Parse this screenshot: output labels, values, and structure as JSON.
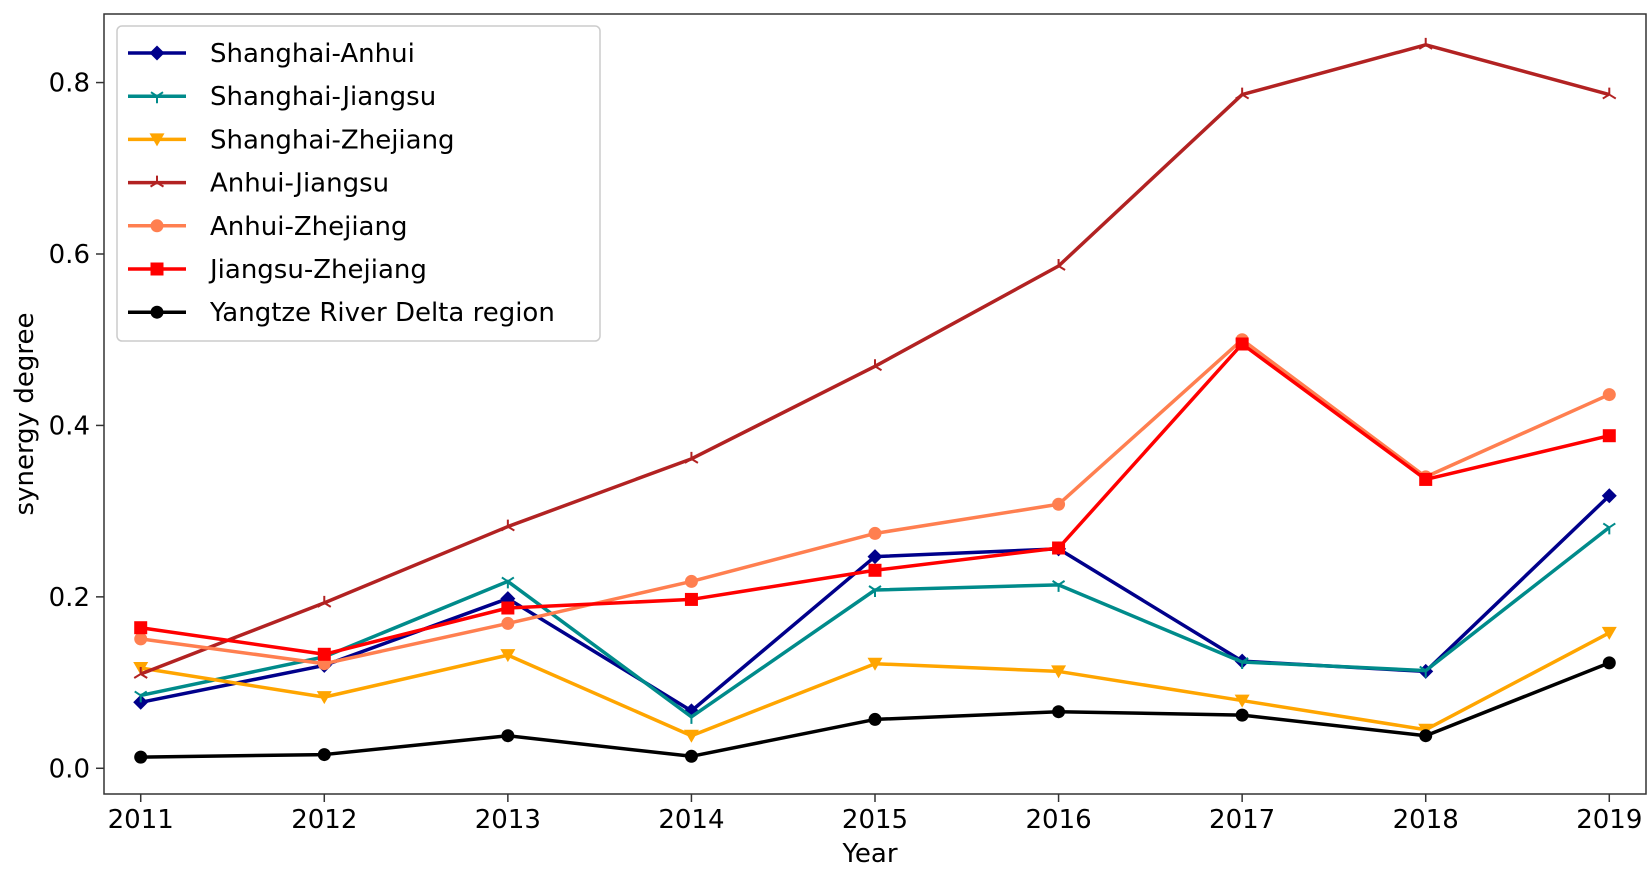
{
  "chart_data": {
    "type": "line",
    "title": "",
    "xlabel": "Year",
    "ylabel": "synergy degree",
    "x": [
      2011,
      2012,
      2013,
      2014,
      2015,
      2016,
      2017,
      2018,
      2019
    ],
    "x_tick_labels": [
      "2011",
      "2012",
      "2013",
      "2014",
      "2015",
      "2016",
      "2017",
      "2018",
      "2019"
    ],
    "y_ticks": [
      0.0,
      0.2,
      0.4,
      0.6,
      0.8
    ],
    "y_tick_labels": [
      "0.0",
      "0.2",
      "0.4",
      "0.6",
      "0.8"
    ],
    "xlim": [
      2010.8,
      2019.2
    ],
    "ylim": [
      -0.03,
      0.88
    ],
    "grid": false,
    "legend_position": "top-left",
    "series": [
      {
        "name": "Shanghai-Anhui",
        "color": "#00008B",
        "marker": "diamond",
        "values": [
          0.077,
          0.12,
          0.198,
          0.067,
          0.247,
          0.256,
          0.125,
          0.113,
          0.318
        ]
      },
      {
        "name": "Shanghai-Jiangsu",
        "color": "#008B8B",
        "marker": "tri",
        "values": [
          0.085,
          0.13,
          0.218,
          0.06,
          0.208,
          0.214,
          0.124,
          0.114,
          0.281
        ]
      },
      {
        "name": "Shanghai-Zhejiang",
        "color": "#FFA500",
        "marker": "triangle-down",
        "values": [
          0.117,
          0.083,
          0.132,
          0.038,
          0.122,
          0.113,
          0.079,
          0.045,
          0.158
        ]
      },
      {
        "name": "Anhui-Jiangsu",
        "color": "#B22222",
        "marker": "star",
        "values": [
          0.11,
          0.193,
          0.282,
          0.361,
          0.469,
          0.586,
          0.786,
          0.844,
          0.786
        ]
      },
      {
        "name": "Anhui-Zhejiang",
        "color": "#FF7F50",
        "marker": "circle",
        "values": [
          0.151,
          0.122,
          0.169,
          0.218,
          0.274,
          0.308,
          0.5,
          0.34,
          0.436
        ]
      },
      {
        "name": "Jiangsu-Zhejiang",
        "color": "#FF0000",
        "marker": "square",
        "values": [
          0.164,
          0.133,
          0.187,
          0.197,
          0.231,
          0.257,
          0.495,
          0.337,
          0.388
        ]
      },
      {
        "name": "Yangtze River Delta region",
        "color": "#000000",
        "marker": "circle",
        "values": [
          0.013,
          0.016,
          0.038,
          0.014,
          0.057,
          0.066,
          0.062,
          0.038,
          0.123
        ]
      }
    ]
  }
}
